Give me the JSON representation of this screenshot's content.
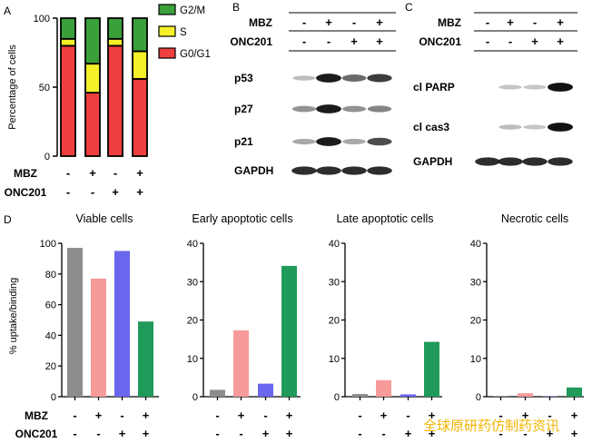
{
  "panels": {
    "a": "A",
    "b": "B",
    "c": "C",
    "d": "D"
  },
  "treatments": {
    "mbz": "MBZ",
    "onc": "ONC201",
    "plus": "+",
    "minus": "-"
  },
  "conditions": [
    {
      "mbz": "-",
      "onc": "-"
    },
    {
      "mbz": "+",
      "onc": "-"
    },
    {
      "mbz": "-",
      "onc": "+"
    },
    {
      "mbz": "+",
      "onc": "+"
    }
  ],
  "colors": {
    "g0g1": "#ee3e3e",
    "s": "#f5f02a",
    "g2m": "#3aa03a",
    "ctrl": "#8c8c8c",
    "mbz": "#f79a9a",
    "onc": "#6a66ee",
    "combo": "#1f9a58"
  },
  "chart_data": [
    {
      "type": "bar",
      "stacked": true,
      "ylabel": "Percentage of cells",
      "ylim": [
        0,
        100
      ],
      "yticks": [
        0,
        50,
        100
      ],
      "legend_position": "right",
      "series": [
        {
          "name": "G0/G1",
          "color_key": "g0g1",
          "values": [
            80,
            46,
            80,
            56
          ]
        },
        {
          "name": "S",
          "color_key": "s",
          "values": [
            5,
            21,
            5,
            20
          ]
        },
        {
          "name": "G2/M",
          "color_key": "g2m",
          "values": [
            15,
            33,
            15,
            24
          ]
        }
      ]
    },
    {
      "type": "bar",
      "title": "Viable cells",
      "ylabel": "% uptake/binding",
      "ylim": [
        0,
        100
      ],
      "yticks": [
        0,
        20,
        40,
        60,
        80,
        100
      ],
      "values": [
        97,
        77,
        95,
        49
      ]
    },
    {
      "type": "bar",
      "title": "Early apoptotic cells",
      "ylim": [
        0,
        40
      ],
      "yticks": [
        0,
        10,
        20,
        30,
        40
      ],
      "values": [
        1.8,
        17.3,
        3.4,
        34.1
      ]
    },
    {
      "type": "bar",
      "title": "Late apoptotic cells",
      "ylim": [
        0,
        40
      ],
      "yticks": [
        0,
        10,
        20,
        30,
        40
      ],
      "values": [
        0.7,
        4.3,
        0.6,
        14.3
      ]
    },
    {
      "type": "bar",
      "title": "Necrotic cells",
      "ylim": [
        0,
        40
      ],
      "yticks": [
        0,
        10,
        20,
        30,
        40
      ],
      "values": [
        0.2,
        0.9,
        0.1,
        2.4
      ]
    }
  ],
  "blots": {
    "b": {
      "rows": [
        {
          "name": "p53",
          "bands": [
            0.35,
            0.95,
            0.7,
            0.85
          ]
        },
        {
          "name": "p27",
          "bands": [
            0.55,
            0.95,
            0.55,
            0.6
          ]
        },
        {
          "name": "p21",
          "bands": [
            0.45,
            0.95,
            0.45,
            0.8
          ]
        },
        {
          "name": "GAPDH",
          "bands": [
            0.9,
            0.9,
            0.9,
            0.9
          ]
        }
      ]
    },
    "c": {
      "rows": [
        {
          "name": "cl PARP",
          "bands": [
            0.0,
            0.3,
            0.3,
            0.98
          ]
        },
        {
          "name": "cl cas3",
          "bands": [
            0.0,
            0.35,
            0.3,
            0.98
          ]
        },
        {
          "name": "GAPDH",
          "bands": [
            0.9,
            0.9,
            0.9,
            0.9
          ]
        }
      ]
    }
  },
  "watermark": "全球原研药仿制药资讯"
}
